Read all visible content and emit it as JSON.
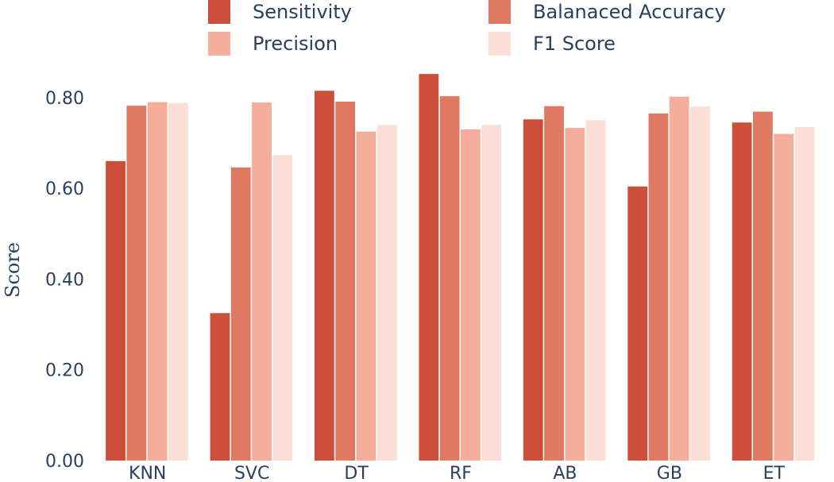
{
  "chart_data": {
    "type": "bar",
    "title": "",
    "xlabel": "",
    "ylabel": "Score",
    "ylim": [
      0,
      0.875
    ],
    "yticks": [
      0,
      0.2,
      0.4,
      0.6,
      0.8
    ],
    "ytick_labels": [
      "0.00",
      "0.20",
      "0.40",
      "0.60",
      "0.80"
    ],
    "grid": false,
    "legend_position": "top",
    "categories": [
      "KNN",
      "SVC",
      "DT",
      "RF",
      "AB",
      "GB",
      "ET"
    ],
    "series": [
      {
        "name": "Sensitivity",
        "color": "#cc4f3b",
        "values": [
          0.66,
          0.325,
          0.815,
          0.852,
          0.752,
          0.604,
          0.745
        ]
      },
      {
        "name": "Balanaced Accuracy",
        "color": "#e07962",
        "values": [
          0.782,
          0.646,
          0.791,
          0.803,
          0.781,
          0.765,
          0.769
        ]
      },
      {
        "name": "Precision",
        "color": "#f5ad9c",
        "values": [
          0.79,
          0.789,
          0.725,
          0.73,
          0.733,
          0.802,
          0.72
        ]
      },
      {
        "name": "F1 Score",
        "color": "#fbdfd6",
        "values": [
          0.788,
          0.673,
          0.74,
          0.74,
          0.75,
          0.78,
          0.735
        ]
      }
    ]
  }
}
